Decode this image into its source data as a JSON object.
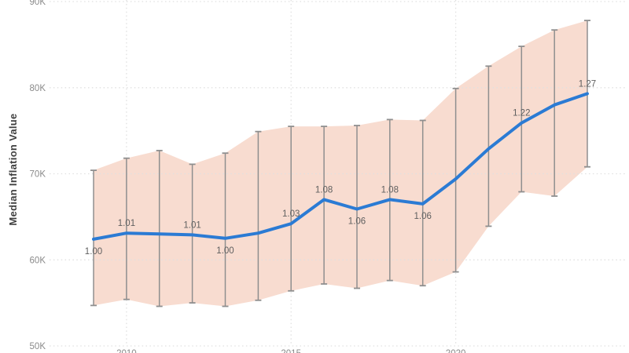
{
  "chart": {
    "y_axis_title": "Median Inflation Value",
    "y_ticks": [
      {
        "label": "90K",
        "value": 90
      },
      {
        "label": "80K",
        "value": 80
      },
      {
        "label": "70K",
        "value": 70
      },
      {
        "label": "60K",
        "value": 60
      },
      {
        "label": "50K",
        "value": 50
      }
    ],
    "x_ticks": [
      {
        "label": "2010",
        "year": 2010
      },
      {
        "label": "2015",
        "year": 2015
      },
      {
        "label": "2020",
        "year": 2020
      }
    ],
    "colors": {
      "background": "#ffffff",
      "line": "#2b7bd4",
      "band_fill": "#f8dcd0",
      "error_bar": "#8f8f8f",
      "gridline": "#e0e0e0",
      "tick_label": "#8a8a8a",
      "data_label": "#5f5f5f",
      "axis_title": "#3f3f3f"
    }
  },
  "chart_data": {
    "type": "line",
    "title": "",
    "xlabel": "",
    "ylabel": "Median Inflation Value",
    "y_unit": "K (thousands)",
    "ylim": [
      50,
      90
    ],
    "grid": "dotted",
    "legend": "none",
    "x": [
      2009,
      2010,
      2011,
      2012,
      2013,
      2014,
      2015,
      2016,
      2017,
      2018,
      2019,
      2020,
      2021,
      2022,
      2023,
      2024
    ],
    "series": [
      {
        "name": "median",
        "values": [
          62.4,
          63.1,
          63.0,
          62.9,
          62.5,
          63.1,
          64.2,
          67.0,
          65.9,
          67.0,
          66.5,
          69.4,
          72.9,
          75.9,
          78.0,
          79.3
        ]
      },
      {
        "name": "upper_bound",
        "values": [
          70.4,
          71.8,
          72.7,
          71.1,
          72.4,
          74.9,
          75.5,
          75.5,
          75.6,
          76.3,
          76.2,
          79.9,
          82.5,
          84.8,
          86.7,
          87.8
        ]
      },
      {
        "name": "lower_bound",
        "values": [
          54.7,
          55.4,
          54.6,
          55.0,
          54.6,
          55.3,
          56.4,
          57.2,
          56.7,
          57.6,
          57.0,
          58.6,
          63.9,
          67.9,
          67.4,
          70.8
        ]
      }
    ],
    "point_labels": [
      "1.00",
      "1.01",
      null,
      "1.01",
      "1.00",
      null,
      "1.03",
      "1.08",
      "1.06",
      "1.08",
      "1.06",
      null,
      null,
      "1.22",
      null,
      "1.27"
    ],
    "label_positions": [
      "below",
      "above",
      null,
      "above",
      "below",
      null,
      "above",
      "above",
      "below",
      "above",
      "below",
      null,
      null,
      "above",
      null,
      "above"
    ]
  }
}
